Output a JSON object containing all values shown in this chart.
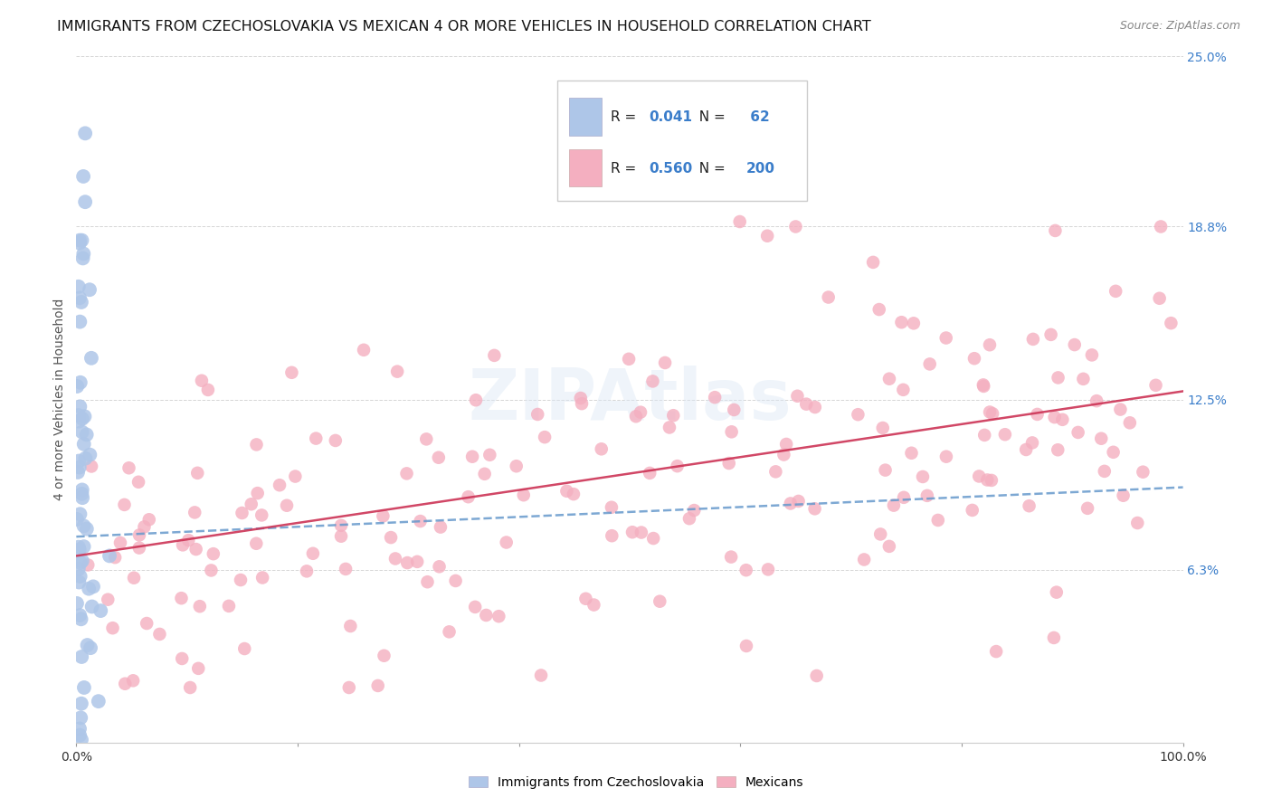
{
  "title": "IMMIGRANTS FROM CZECHOSLOVAKIA VS MEXICAN 4 OR MORE VEHICLES IN HOUSEHOLD CORRELATION CHART",
  "source": "Source: ZipAtlas.com",
  "ylabel": "4 or more Vehicles in Household",
  "xlim": [
    0,
    1.0
  ],
  "ylim": [
    0,
    0.25
  ],
  "yticks": [
    0.063,
    0.125,
    0.188,
    0.25
  ],
  "ytick_labels": [
    "6.3%",
    "12.5%",
    "18.8%",
    "25.0%"
  ],
  "color_blue": "#aec6e8",
  "color_pink": "#f4afc0",
  "line_blue": "#6699cc",
  "line_pink": "#cc3355",
  "trend_blue_y0": 0.075,
  "trend_blue_y1": 0.093,
  "trend_pink_y0": 0.068,
  "trend_pink_y1": 0.128,
  "background_color": "#ffffff",
  "title_fontsize": 11.5,
  "source_fontsize": 9,
  "axis_label_fontsize": 10,
  "tick_fontsize": 10,
  "right_tick_color": "#3a7dca",
  "legend_r1": "R = 0.041",
  "legend_n1": "N =  62",
  "legend_r2": "R = 0.560",
  "legend_n2": "N = 200",
  "watermark": "ZIPAtlas",
  "label_blue": "Immigrants from Czechoslovakia",
  "label_pink": "Mexicans"
}
